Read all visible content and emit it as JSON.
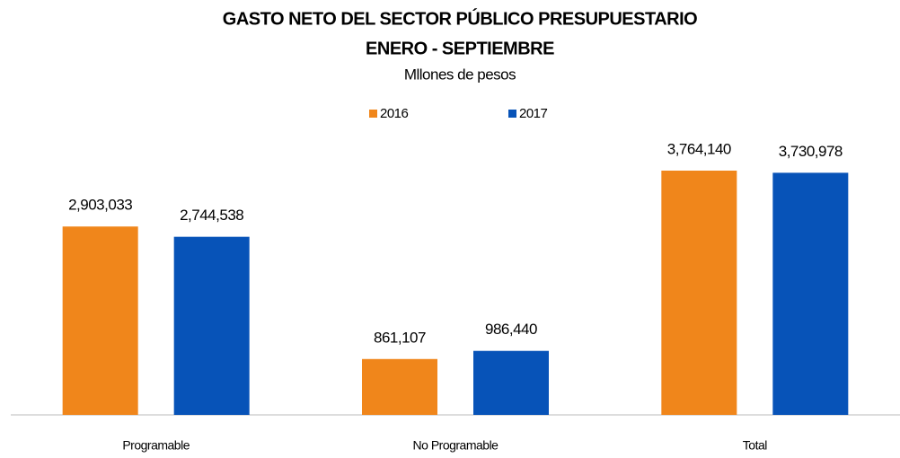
{
  "chart_data": {
    "type": "bar",
    "title": "GASTO NETO DEL SECTOR PÚBLICO PRESUPUESTARIO",
    "subtitle": "ENERO - SEPTIEMBRE",
    "y_label": "Mllones de pesos",
    "categories": [
      "Programable",
      "No Programable",
      "Total"
    ],
    "series": [
      {
        "name": "2016",
        "color": "#f0861b",
        "values": [
          2903033,
          861107,
          3764140
        ],
        "value_labels": [
          "2,903,033",
          "861,107",
          "3,764,140"
        ]
      },
      {
        "name": "2017",
        "color": "#0753b8",
        "values": [
          2744538,
          986440,
          3730978
        ],
        "value_labels": [
          "2,744,538",
          "986,440",
          "3,730,978"
        ]
      }
    ]
  }
}
